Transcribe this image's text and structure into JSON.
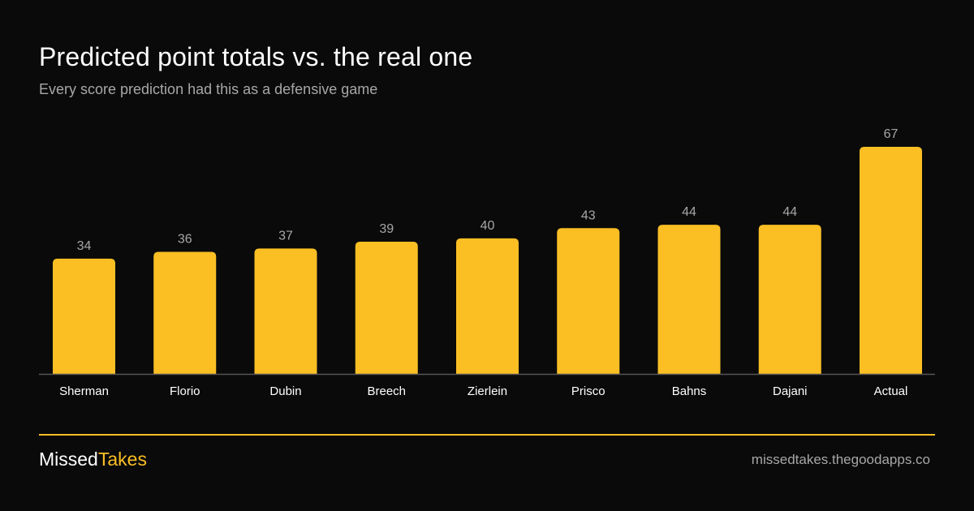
{
  "header": {
    "title": "Predicted point totals vs. the real one",
    "subtitle": "Every score prediction had this as a defensive game"
  },
  "colors": {
    "background": "#0a0a0a",
    "bar": "#fbbf24",
    "muted_text": "#a7a7a7",
    "accent": "#fbbf24"
  },
  "chart_data": {
    "type": "bar",
    "categories": [
      "Sherman",
      "Florio",
      "Dubin",
      "Breech",
      "Zierlein",
      "Prisco",
      "Bahns",
      "Dajani",
      "Actual"
    ],
    "values": [
      34,
      36,
      37,
      39,
      40,
      43,
      44,
      44,
      67
    ],
    "ylim": [
      0,
      67
    ],
    "grid": false,
    "legend": "none",
    "data_labels": true
  },
  "footer": {
    "brand_part1": "Missed",
    "brand_part2": "Takes",
    "site": "missedtakes.thegoodapps.co"
  }
}
